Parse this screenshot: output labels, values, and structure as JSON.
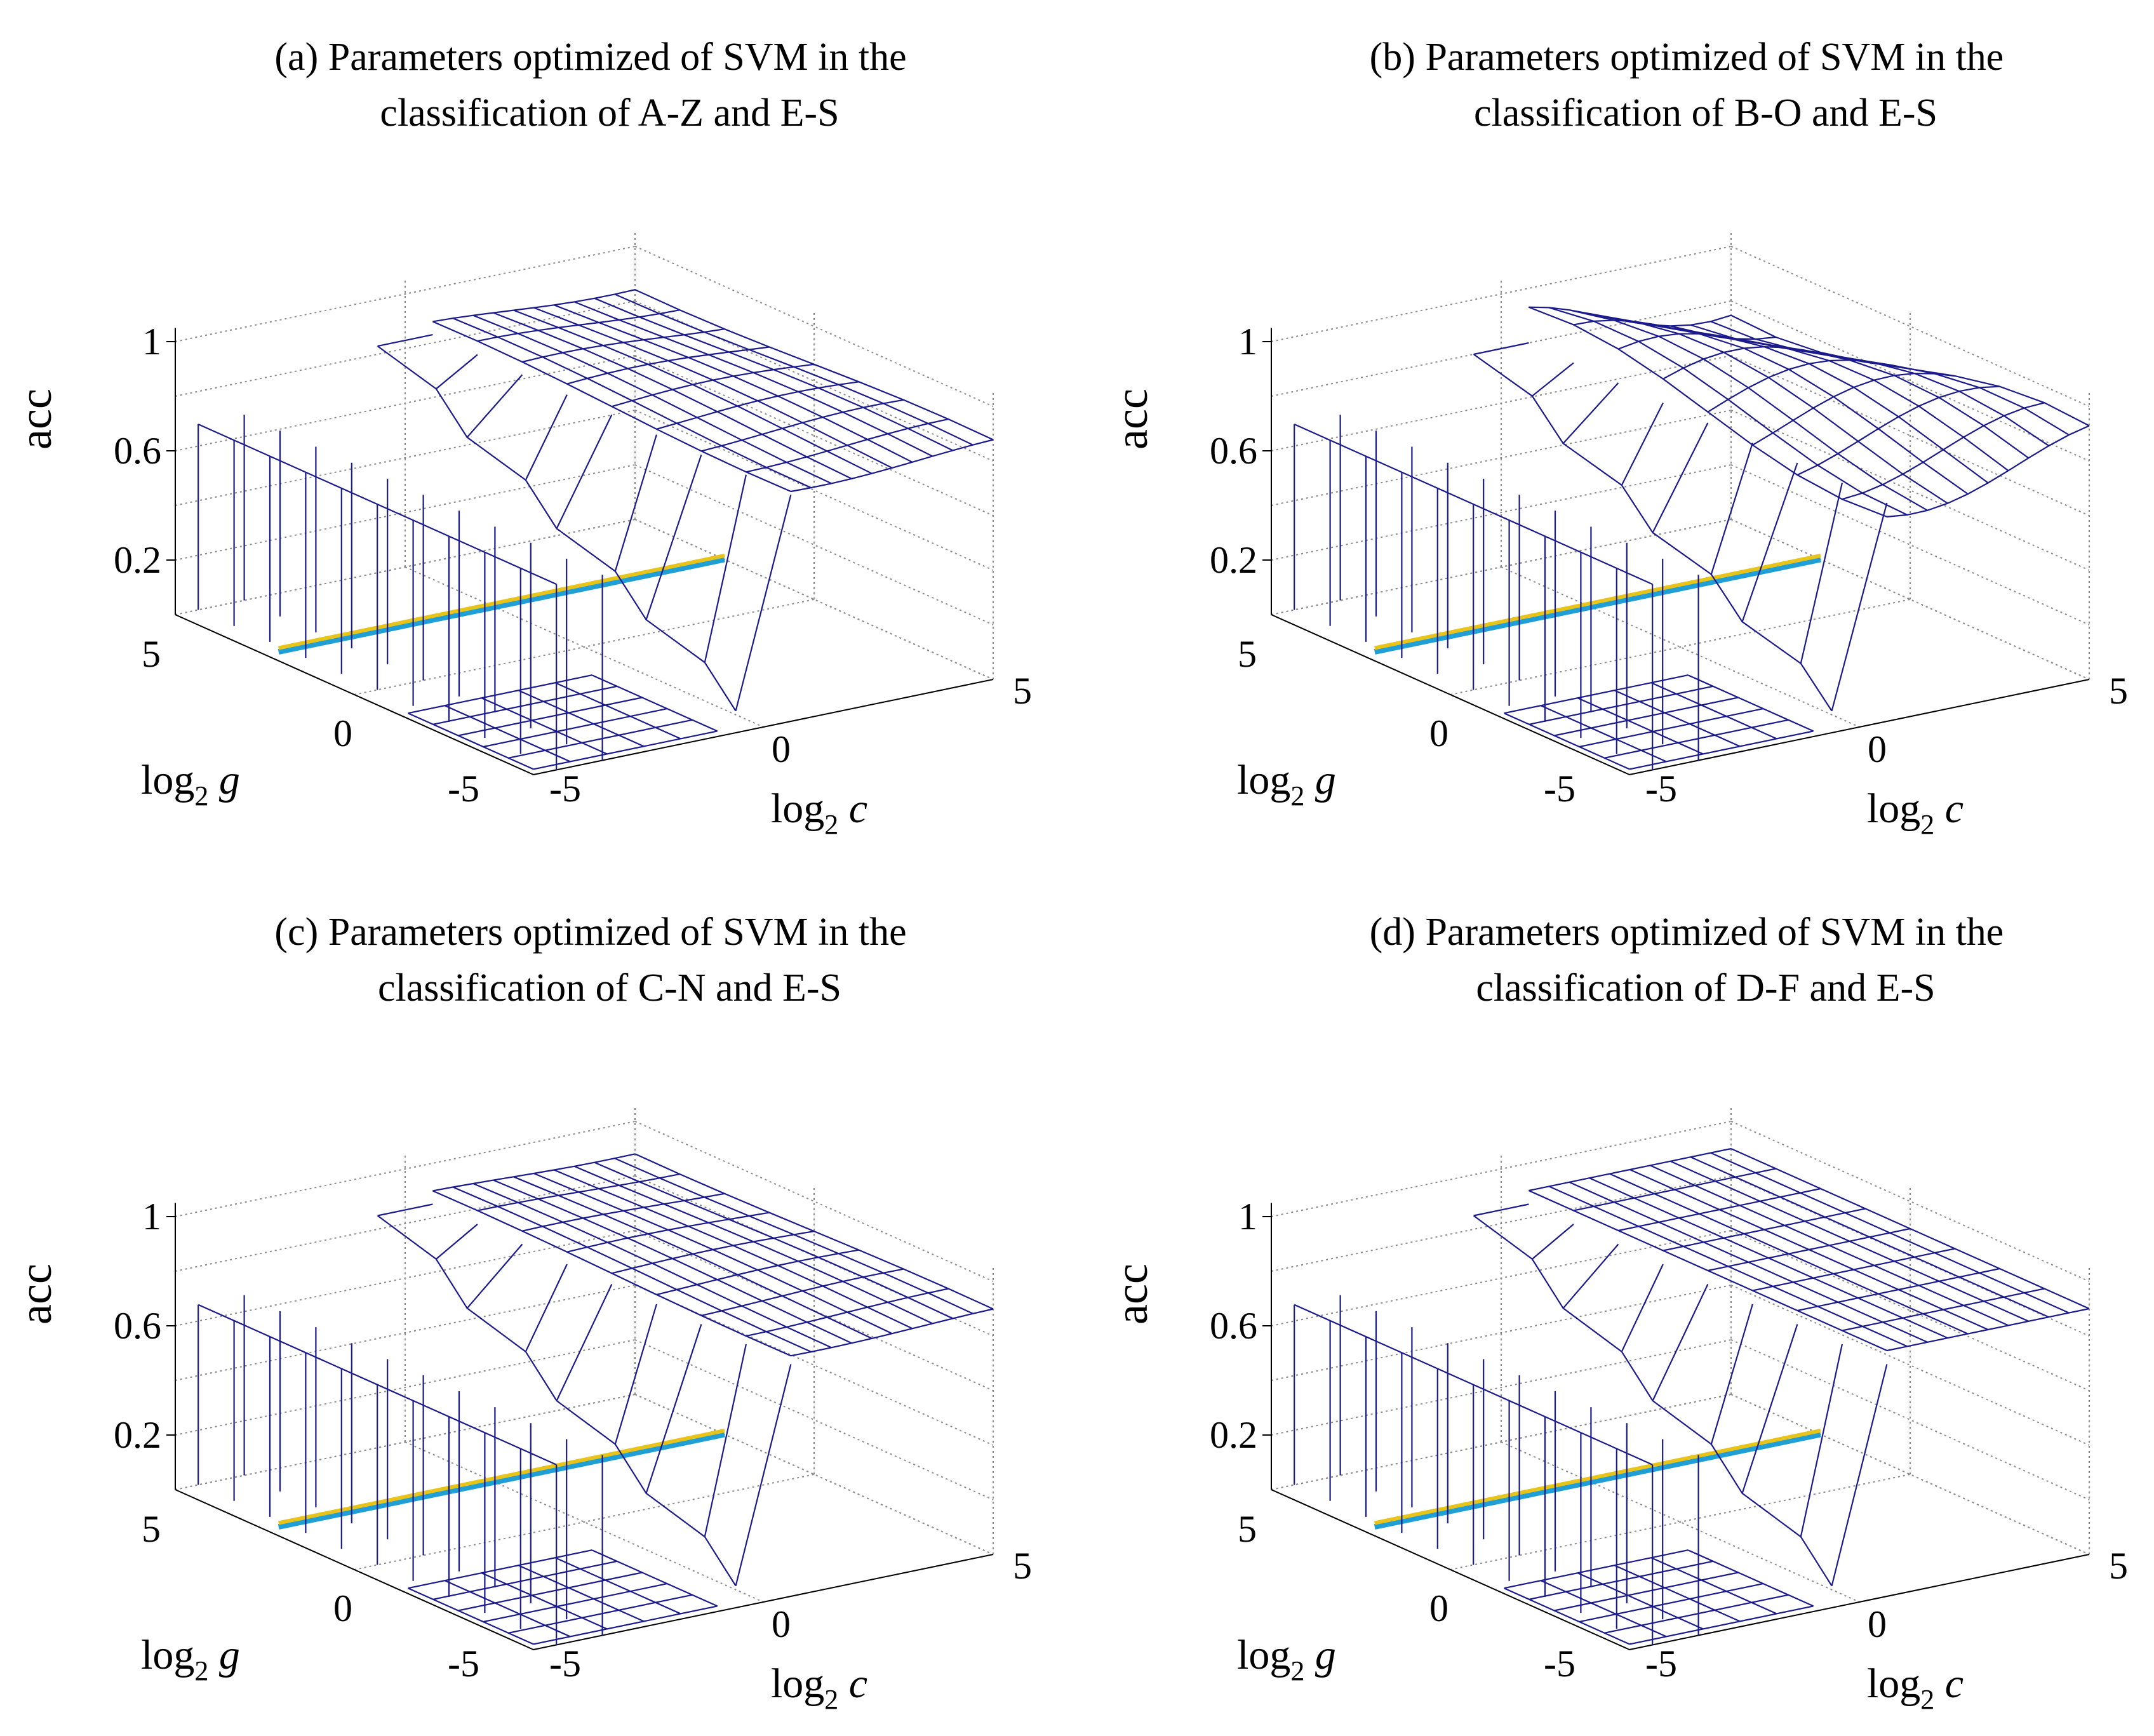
{
  "figure": {
    "colors": {
      "mesh": "#1a1a8c",
      "axes": "#000000",
      "grid": "#8a8a8a",
      "contour_blue": "#1f9fd6",
      "contour_yellow": "#e8c31a"
    }
  },
  "chart_data": [
    {
      "type": "surface",
      "panel_label": "(a)",
      "title_line1": "(a) Parameters optimized of SVM in the",
      "title_line2": "classification of A-Z and E-S",
      "zlabel": "acc",
      "xlabel_base": "log",
      "xlabel_sub": "2",
      "xlabel_var": "c",
      "ylabel_base": "log",
      "ylabel_sub": "2",
      "ylabel_var": "g",
      "xticks": [
        "-5",
        "0",
        "5"
      ],
      "yticks": [
        "-5",
        "0",
        "5"
      ],
      "zticks": [
        "0.2",
        "0.6",
        "1"
      ],
      "xlim": [
        -5,
        5
      ],
      "ylim": [
        -5,
        5
      ],
      "zlim": [
        0,
        1
      ],
      "grid": true,
      "wall_height": 0.68,
      "plateau_low": 0.84,
      "plateau_high": 0.88,
      "ridge_top": 0.83
    },
    {
      "type": "surface",
      "panel_label": "(b)",
      "title_line1": "(b) Parameters optimized of SVM in the",
      "title_line2": "classification of B-O and E-S",
      "zlabel": "acc",
      "xlabel_base": "log",
      "xlabel_sub": "2",
      "xlabel_var": "c",
      "ylabel_base": "log",
      "ylabel_sub": "2",
      "ylabel_var": "g",
      "xticks": [
        "-5",
        "0",
        "5"
      ],
      "yticks": [
        "-5",
        "0",
        "5"
      ],
      "zticks": [
        "0.2",
        "0.6",
        "1"
      ],
      "xlim": [
        -5,
        5
      ],
      "ylim": [
        -5,
        5
      ],
      "zlim": [
        0,
        1
      ],
      "grid": true,
      "wall_height": 0.68,
      "plateau_low": 0.74,
      "plateau_high": 0.94,
      "ridge_top": 0.8
    },
    {
      "type": "surface",
      "panel_label": "(c)",
      "title_line1": "(c) Parameters optimized of SVM in the",
      "title_line2": "classification of C-N and E-S",
      "zlabel": "acc",
      "xlabel_base": "log",
      "xlabel_sub": "2",
      "xlabel_var": "c",
      "ylabel_base": "log",
      "ylabel_sub": "2",
      "ylabel_var": "g",
      "xticks": [
        "-5",
        "0",
        "5"
      ],
      "yticks": [
        "-5",
        "0",
        "5"
      ],
      "zticks": [
        "0.2",
        "0.6",
        "1"
      ],
      "xlim": [
        -5,
        5
      ],
      "ylim": [
        -5,
        5
      ],
      "zlim": [
        0,
        1
      ],
      "grid": true,
      "wall_height": 0.66,
      "plateau_low": 0.88,
      "plateau_high": 0.9,
      "ridge_top": 0.85
    },
    {
      "type": "surface",
      "panel_label": "(d)",
      "title_line1": "(d) Parameters optimized of SVM in the",
      "title_line2": "classification of D-F and E-S",
      "zlabel": "acc",
      "xlabel_base": "log",
      "xlabel_sub": "2",
      "xlabel_var": "c",
      "ylabel_base": "log",
      "ylabel_sub": "2",
      "ylabel_var": "g",
      "xticks": [
        "-5",
        "0",
        "5"
      ],
      "yticks": [
        "-5",
        "0",
        "5"
      ],
      "zticks": [
        "0.2",
        "0.6",
        "1"
      ],
      "xlim": [
        -5,
        5
      ],
      "ylim": [
        -5,
        5
      ],
      "zlim": [
        0,
        1
      ],
      "grid": true,
      "wall_height": 0.66,
      "plateau_low": 0.9,
      "plateau_high": 0.9,
      "ridge_top": 0.85
    }
  ]
}
